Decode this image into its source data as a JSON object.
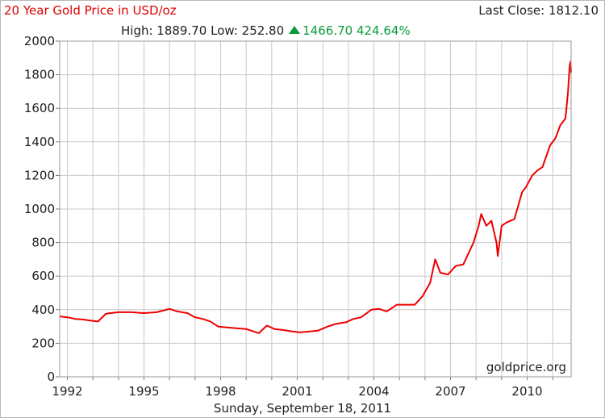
{
  "header": {
    "title": "20 Year Gold Price in USD/oz",
    "last_close": "Last Close: 1812.10",
    "high": "High: 1889.70",
    "low": "Low: 252.80",
    "change": "1466.70",
    "change_pct": "424.64%"
  },
  "footer": {
    "date": "Sunday, September 18, 2011"
  },
  "watermark": "goldprice.org",
  "colors": {
    "line": "#ee0000",
    "grid": "#c8c8c8",
    "title": "#e00000",
    "up": "#089b3a"
  },
  "chart_data": {
    "type": "line",
    "title": "20 Year Gold Price in USD/oz",
    "xlabel": "",
    "ylabel": "",
    "xlim": [
      1991.7,
      2011.72
    ],
    "ylim": [
      0,
      2000
    ],
    "yticks": [
      0,
      200,
      400,
      600,
      800,
      1000,
      1200,
      1400,
      1600,
      1800,
      2000
    ],
    "xticks": [
      1992,
      1995,
      1998,
      2001,
      2004,
      2007,
      2010
    ],
    "grid": true,
    "legend": "none",
    "series": [
      {
        "x": [
          1991.7,
          1992.0,
          1992.3,
          1992.6,
          1992.9,
          1993.2,
          1993.5,
          1993.7,
          1994.0,
          1994.5,
          1995.0,
          1995.5,
          1996.0,
          1996.3,
          1996.7,
          1997.0,
          1997.3,
          1997.6,
          1997.9,
          1998.2,
          1998.6,
          1999.0,
          1999.5,
          1999.8,
          1999.9,
          2000.1,
          2000.4,
          2000.8,
          2001.1,
          2001.5,
          2001.8,
          2002.2,
          2002.5,
          2002.9,
          2003.2,
          2003.5,
          2003.9,
          2004.2,
          2004.5,
          2004.9,
          2005.2,
          2005.6,
          2005.9,
          2006.2,
          2006.4,
          2006.6,
          2006.9,
          2007.2,
          2007.5,
          2007.9,
          2008.1,
          2008.2,
          2008.4,
          2008.6,
          2008.8,
          2008.85,
          2009.0,
          2009.2,
          2009.5,
          2009.8,
          2009.95,
          2010.2,
          2010.4,
          2010.6,
          2010.9,
          2011.1,
          2011.3,
          2011.5,
          2011.6,
          2011.66,
          2011.7,
          2011.72
        ],
        "values": [
          360,
          355,
          345,
          342,
          335,
          330,
          375,
          380,
          385,
          385,
          380,
          385,
          405,
          390,
          380,
          355,
          345,
          330,
          300,
          295,
          290,
          285,
          260,
          305,
          300,
          285,
          280,
          270,
          265,
          270,
          275,
          300,
          315,
          325,
          345,
          355,
          400,
          405,
          390,
          430,
          430,
          430,
          480,
          560,
          700,
          620,
          610,
          660,
          670,
          800,
          900,
          970,
          900,
          930,
          800,
          720,
          900,
          920,
          940,
          1100,
          1130,
          1200,
          1230,
          1250,
          1380,
          1420,
          1500,
          1540,
          1700,
          1850,
          1880,
          1812
        ]
      }
    ]
  }
}
